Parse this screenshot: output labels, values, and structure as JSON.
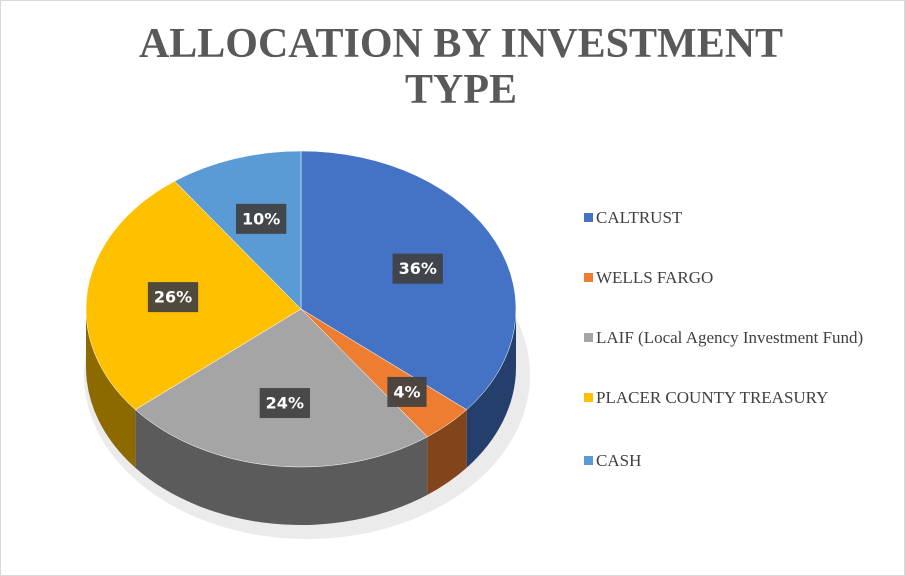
{
  "chart_data": {
    "type": "pie",
    "title": "ALLOCATION BY INVESTMENT TYPE",
    "categories": [
      "CALTRUST",
      "WELLS FARGO",
      "LAIF (Local Agency Investment Fund)",
      "PLACER COUNTY TREASURY",
      "CASH"
    ],
    "values": [
      36,
      4,
      24,
      26,
      10
    ],
    "value_labels": [
      "36%",
      "4%",
      "24%",
      "26%",
      "10%"
    ],
    "colors": [
      "#4472c4",
      "#ed7d31",
      "#a5a5a5",
      "#ffc000",
      "#5b9bd5"
    ],
    "legend": "right"
  }
}
